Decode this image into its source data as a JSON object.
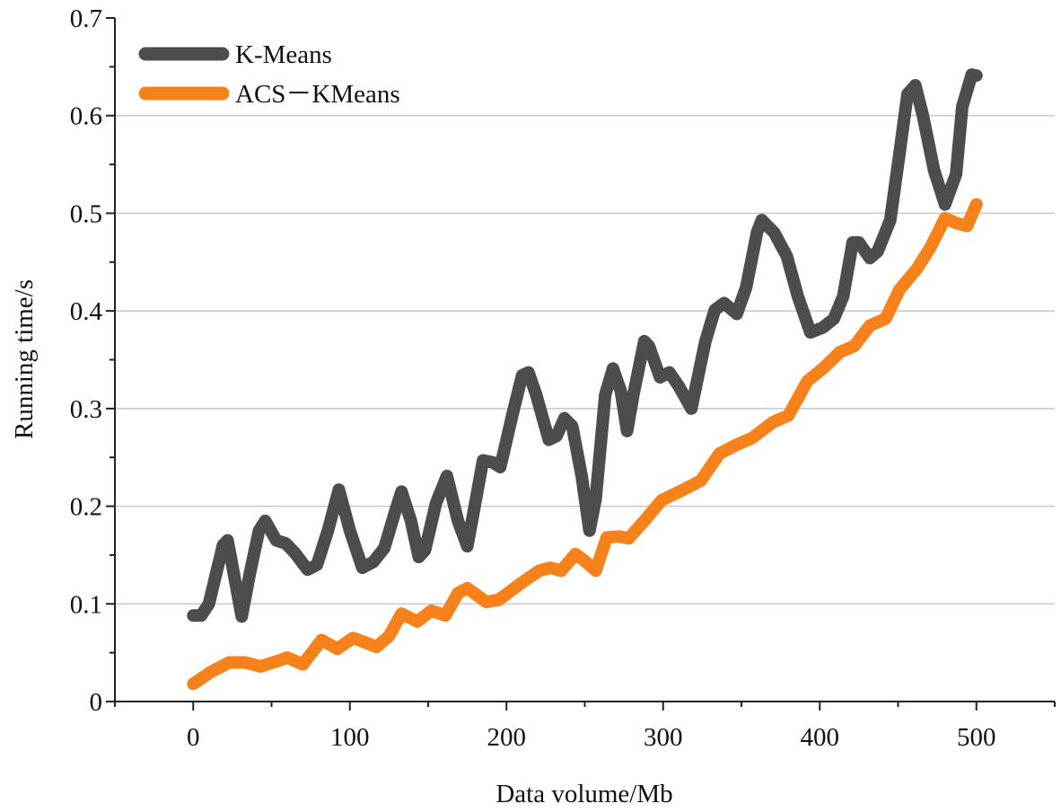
{
  "chart_data": {
    "type": "line",
    "title": "",
    "xlabel": "Data volume/Mb",
    "ylabel": "Running time/s",
    "xlim": [
      -50,
      550
    ],
    "ylim": [
      0,
      0.7
    ],
    "xticks": [
      0,
      100,
      200,
      300,
      400,
      500
    ],
    "xtick_labels": [
      "0",
      "100",
      "200",
      "300",
      "400",
      "500"
    ],
    "yticks": [
      0,
      0.1,
      0.2,
      0.3,
      0.4,
      0.5,
      0.6,
      0.7
    ],
    "ytick_labels": [
      "0",
      "0.1",
      "0.2",
      "0.3",
      "0.4",
      "0.5",
      "0.6",
      "0.7"
    ],
    "grid": "horizontal",
    "legend_position": "top-left",
    "series": [
      {
        "name": "K-Means",
        "color": "#4d4d4d",
        "x": [
          0,
          5,
          10,
          19,
          22,
          31,
          36,
          42,
          46,
          53,
          59,
          65,
          73,
          79,
          86,
          93,
          100,
          108,
          115,
          122,
          129,
          133,
          139,
          144,
          148,
          155,
          162,
          169,
          175,
          179,
          185,
          191,
          196,
          204,
          210,
          214,
          219,
          227,
          232,
          237,
          242,
          248,
          253,
          257,
          263,
          268,
          273,
          277,
          281,
          288,
          291,
          298,
          304,
          310,
          318,
          321,
          327,
          333,
          339,
          347,
          353,
          360,
          363,
          371,
          379,
          386,
          394,
          402,
          409,
          415,
          421,
          425,
          432,
          437,
          445,
          451,
          456,
          461,
          466,
          473,
          480,
          487,
          491,
          497,
          500
        ],
        "y": [
          0.088,
          0.088,
          0.1,
          0.16,
          0.165,
          0.087,
          0.13,
          0.175,
          0.185,
          0.165,
          0.162,
          0.152,
          0.135,
          0.14,
          0.175,
          0.217,
          0.175,
          0.137,
          0.143,
          0.157,
          0.195,
          0.215,
          0.185,
          0.148,
          0.155,
          0.203,
          0.231,
          0.185,
          0.159,
          0.194,
          0.247,
          0.245,
          0.24,
          0.295,
          0.334,
          0.337,
          0.314,
          0.268,
          0.272,
          0.29,
          0.282,
          0.231,
          0.175,
          0.208,
          0.314,
          0.341,
          0.318,
          0.277,
          0.314,
          0.369,
          0.364,
          0.332,
          0.337,
          0.323,
          0.3,
          0.323,
          0.369,
          0.401,
          0.408,
          0.397,
          0.424,
          0.481,
          0.493,
          0.48,
          0.456,
          0.415,
          0.378,
          0.383,
          0.392,
          0.415,
          0.47,
          0.47,
          0.454,
          0.461,
          0.493,
          0.562,
          0.622,
          0.631,
          0.599,
          0.544,
          0.509,
          0.54,
          0.609,
          0.642,
          0.641
        ]
      },
      {
        "name": "ACS－KMeans",
        "color": "#f7821b",
        "x": [
          0,
          11,
          23,
          33,
          43,
          55,
          60,
          70,
          82,
          92,
          102,
          109,
          117,
          125,
          133,
          143,
          152,
          161,
          169,
          175,
          187,
          195,
          210,
          221,
          228,
          235,
          244,
          250,
          257,
          264,
          272,
          278,
          289,
          299,
          313,
          324,
          336,
          347,
          357,
          370,
          380,
          392,
          402,
          413,
          422,
          432,
          442,
          451,
          462,
          471,
          480,
          487,
          494,
          500
        ],
        "y": [
          0.018,
          0.03,
          0.04,
          0.04,
          0.036,
          0.042,
          0.045,
          0.038,
          0.063,
          0.054,
          0.065,
          0.061,
          0.056,
          0.067,
          0.09,
          0.082,
          0.093,
          0.088,
          0.111,
          0.116,
          0.102,
          0.104,
          0.122,
          0.134,
          0.137,
          0.134,
          0.151,
          0.144,
          0.134,
          0.168,
          0.169,
          0.167,
          0.187,
          0.206,
          0.217,
          0.226,
          0.254,
          0.263,
          0.27,
          0.286,
          0.293,
          0.328,
          0.341,
          0.358,
          0.364,
          0.385,
          0.392,
          0.422,
          0.443,
          0.466,
          0.495,
          0.49,
          0.487,
          0.509
        ]
      }
    ]
  }
}
